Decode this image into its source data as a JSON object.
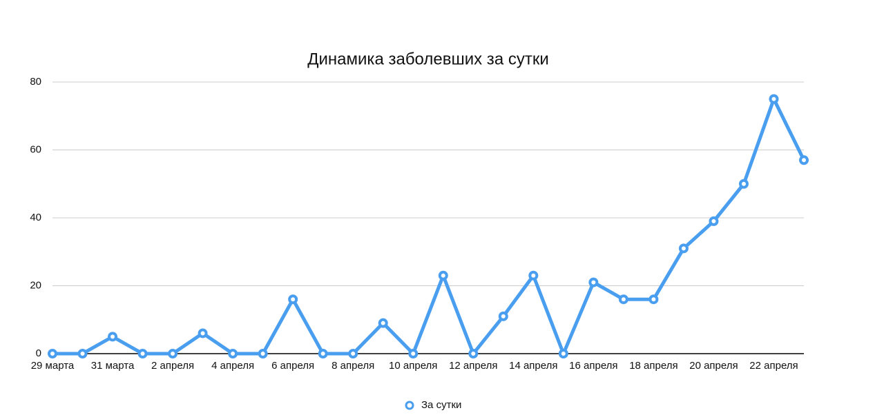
{
  "chart_data": {
    "type": "line",
    "title": "Динамика заболевших за сутки",
    "categories": [
      "29 марта",
      null,
      "31 марта",
      null,
      "2 апреля",
      null,
      "4 апреля",
      null,
      "6 апреля",
      null,
      "8 апреля",
      null,
      "10 апреля",
      null,
      "12 апреля",
      null,
      "14 апреля",
      null,
      "16 апреля",
      null,
      "18 апреля",
      null,
      "20 апреля",
      null,
      "22 апреля",
      null
    ],
    "series": [
      {
        "name": "За сутки",
        "color": "#4a9eef",
        "values": [
          0,
          0,
          5,
          0,
          0,
          6,
          0,
          0,
          16,
          0,
          0,
          9,
          0,
          23,
          0,
          11,
          23,
          0,
          21,
          16,
          16,
          31,
          39,
          50,
          75,
          57
        ]
      }
    ],
    "ylim": [
      0,
      80
    ],
    "yticks": [
      0,
      20,
      40,
      60,
      80
    ],
    "grid": true,
    "legend": "bottom"
  }
}
